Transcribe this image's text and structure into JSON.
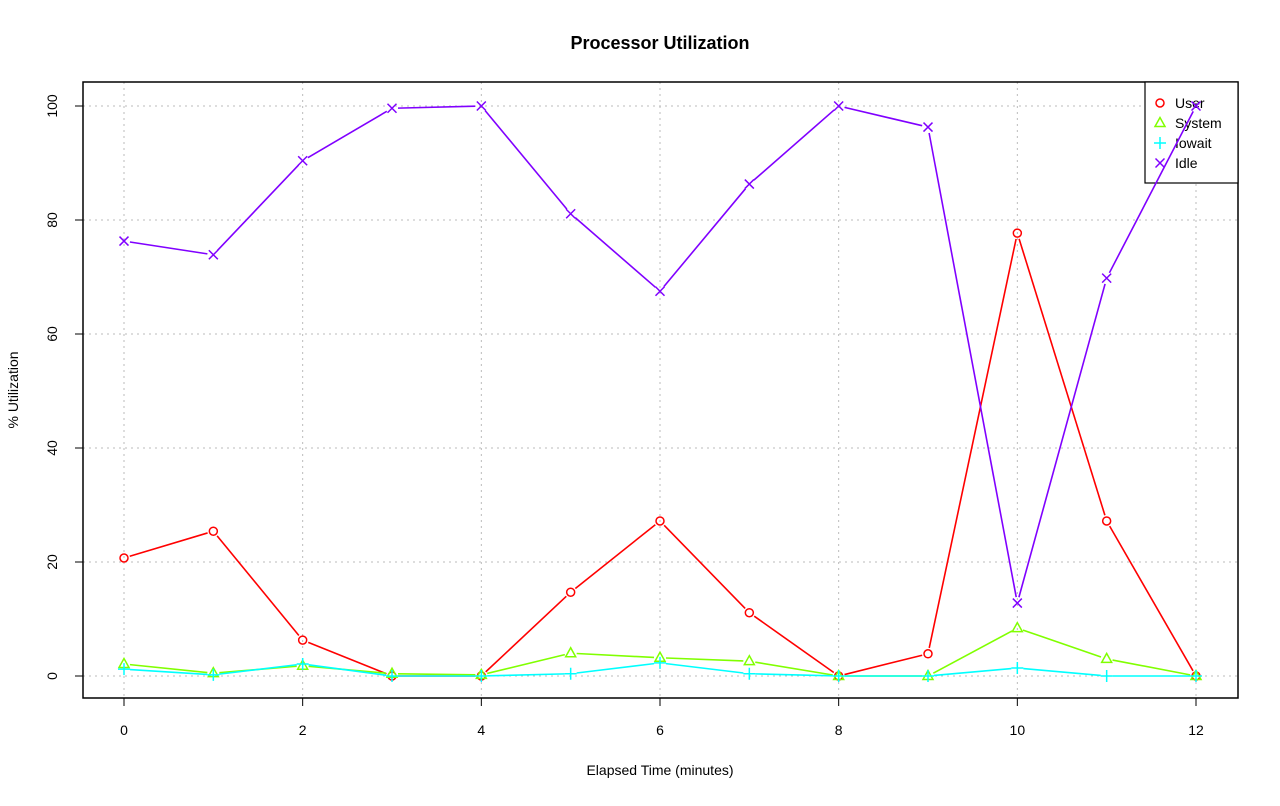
{
  "chart_data": {
    "type": "line",
    "title": "Processor Utilization",
    "xlabel": "Elapsed Time (minutes)",
    "ylabel": "% Utilization",
    "xlim": [
      -0.5,
      12.5
    ],
    "ylim": [
      -4,
      104
    ],
    "xticks": [
      0,
      2,
      4,
      6,
      8,
      10,
      12
    ],
    "yticks": [
      0,
      20,
      40,
      60,
      80,
      100
    ],
    "grid": true,
    "legend_position": "top-right",
    "x": [
      0,
      1,
      2,
      3,
      4,
      5,
      6,
      7,
      8,
      9,
      10,
      11,
      12
    ],
    "series": [
      {
        "name": "User",
        "color": "#ff0000",
        "marker": "circle",
        "values": [
          20.7,
          25.4,
          6.3,
          0,
          0,
          14.7,
          27.2,
          11.1,
          0,
          3.9,
          77.7,
          27.2,
          0
        ]
      },
      {
        "name": "System",
        "color": "#80ff00",
        "marker": "triangle",
        "values": [
          2.1,
          0.5,
          1.8,
          0.4,
          0.2,
          4.0,
          3.2,
          2.6,
          0,
          0,
          8.4,
          3.0,
          0
        ]
      },
      {
        "name": "Iowait",
        "color": "#00ffff",
        "marker": "plus",
        "values": [
          1.2,
          0.2,
          2.1,
          0,
          0,
          0.4,
          2.3,
          0.4,
          0,
          0,
          1.4,
          0,
          0
        ]
      },
      {
        "name": "Idle",
        "color": "#8000ff",
        "marker": "cross",
        "values": [
          76.3,
          73.9,
          90.4,
          99.6,
          100,
          81.1,
          67.5,
          86.3,
          100,
          96.3,
          12.8,
          69.8,
          100
        ]
      }
    ]
  }
}
